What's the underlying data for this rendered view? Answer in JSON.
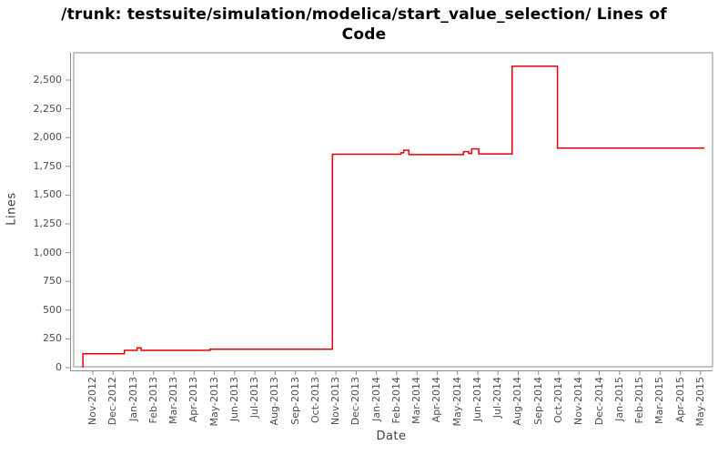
{
  "title_lines": [
    "/trunk: testsuite/simulation/modelica/start_value_selection/ Lines of",
    "Code"
  ],
  "axes": {
    "y_label": "Lines",
    "x_label": "Date"
  },
  "colors": {
    "line": "#e60000",
    "axis": "#8c8c8c",
    "tick_label": "#4d4d4d",
    "title": "#000000",
    "background": "#ffffff"
  },
  "chart_data": {
    "type": "line",
    "title": "/trunk: testsuite/simulation/modelica/start_value_selection/ Lines of Code",
    "xlabel": "Date",
    "ylabel": "Lines",
    "grid": false,
    "legend": "none",
    "ylim": [
      0,
      2740
    ],
    "y_tick_values": [
      0,
      250,
      500,
      750,
      1000,
      1250,
      1500,
      1750,
      2000,
      2250,
      2500
    ],
    "y_tick_labels": [
      "0",
      "250",
      "500",
      "750",
      "1,000",
      "1,250",
      "1,500",
      "1,750",
      "2,000",
      "2,250",
      "2,500"
    ],
    "x_tick_labels": [
      "Nov-2012",
      "Dec-2012",
      "Jan-2013",
      "Feb-2013",
      "Mar-2013",
      "Apr-2013",
      "May-2013",
      "Jun-2013",
      "Jul-2013",
      "Aug-2013",
      "Sep-2013",
      "Oct-2013",
      "Nov-2013",
      "Dec-2013",
      "Jan-2014",
      "Feb-2014",
      "Mar-2014",
      "Apr-2014",
      "May-2014",
      "Jun-2014",
      "Jul-2014",
      "Aug-2014",
      "Sep-2014",
      "Oct-2014",
      "Nov-2014",
      "Dec-2014",
      "Jan-2015",
      "Feb-2015",
      "Mar-2015",
      "Apr-2015",
      "May-2015"
    ],
    "x_unit_note": "series x values are months offset from the Nov-2012 tick (0 = Nov-2012)",
    "series": [
      {
        "name": "Lines of Code",
        "color": "#e60000",
        "vertices": [
          [
            -0.49,
            0
          ],
          [
            -0.49,
            120
          ],
          [
            1.56,
            120
          ],
          [
            1.56,
            150
          ],
          [
            2.19,
            150
          ],
          [
            2.19,
            172
          ],
          [
            2.38,
            172
          ],
          [
            2.38,
            150
          ],
          [
            5.78,
            150
          ],
          [
            5.78,
            160
          ],
          [
            11.83,
            160
          ],
          [
            11.83,
            1855
          ],
          [
            15.2,
            1855
          ],
          [
            15.2,
            1868
          ],
          [
            15.35,
            1868
          ],
          [
            15.35,
            1890
          ],
          [
            15.6,
            1890
          ],
          [
            15.6,
            1852
          ],
          [
            18.3,
            1852
          ],
          [
            18.3,
            1878
          ],
          [
            18.55,
            1878
          ],
          [
            18.55,
            1862
          ],
          [
            18.7,
            1862
          ],
          [
            18.7,
            1902
          ],
          [
            19.05,
            1902
          ],
          [
            19.05,
            1858
          ],
          [
            20.7,
            1858
          ],
          [
            20.7,
            2620
          ],
          [
            22.94,
            2620
          ],
          [
            22.94,
            1908
          ],
          [
            30.19,
            1908
          ]
        ]
      }
    ]
  }
}
